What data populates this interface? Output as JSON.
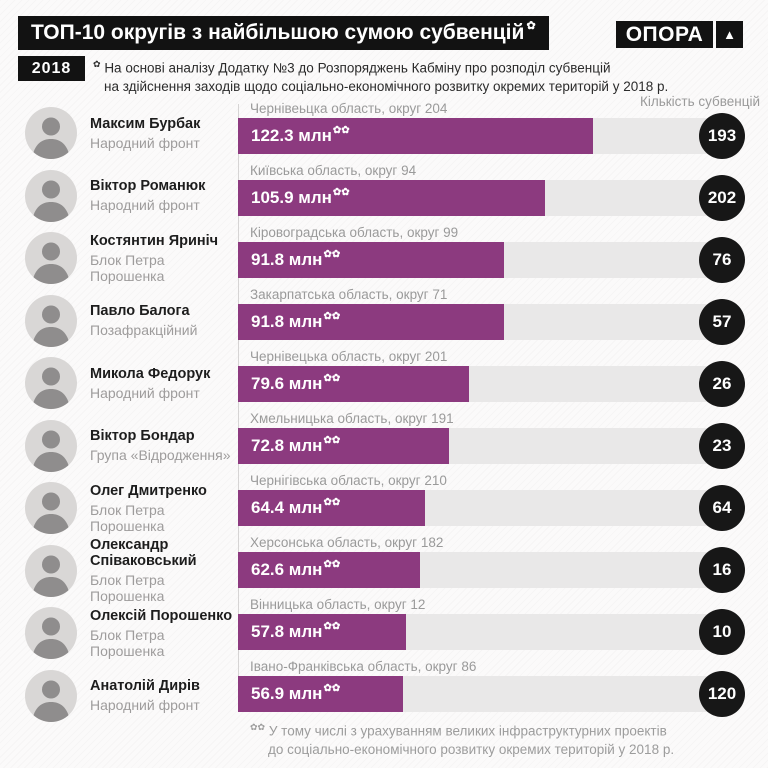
{
  "header": {
    "title": "ТОП-10 округів з найбільшою сумою субвенцій",
    "title_marker": "✿",
    "year": "2018",
    "source_note_marker": "✿",
    "source_note_line1": "На основі аналізу Додатку №3 до Розпоряджень Кабміну про розподіл субвенцій",
    "source_note_line2": "на здійснення заходів щодо соціально-економічного розвитку окремих територій у 2018 р.",
    "logo": {
      "text": "ОПОРА",
      "mark": "▲"
    }
  },
  "people": [
    {
      "name": "Максим Бурбак",
      "party": "Народний фронт"
    },
    {
      "name": "Віктор Романюк",
      "party": "Народний фронт"
    },
    {
      "name": "Костянтин Яриніч",
      "party": "Блок Петра Порошенка"
    },
    {
      "name": "Павло Балога",
      "party": "Позафракційний"
    },
    {
      "name": "Микола Федорук",
      "party": "Народний фронт"
    },
    {
      "name": "Віктор Бондар",
      "party": "Група «Відродження»"
    },
    {
      "name": "Олег Дмитренко",
      "party": "Блок Петра Порошенка"
    },
    {
      "name": "Олександр Співаковський",
      "party": "Блок Петра Порошенка"
    },
    {
      "name": "Олексій Порошенко",
      "party": "Блок Петра Порошенка"
    },
    {
      "name": "Анатолій Дирів",
      "party": "Народний фронт"
    }
  ],
  "chart_data": {
    "type": "bar",
    "title": "ТОП-10 округів з найбільшою сумою субвенцій, 2018",
    "count_label": "Кількість субвенцій",
    "value_unit": "млн",
    "value_marker": "✿✿",
    "max_value": 122.3,
    "max_bar_pct": 71.1,
    "bar_color": "#8c3a7f",
    "track_color": "#e9e8e8",
    "badge_color": "#171717",
    "categories": [
      "Чернівеьцка область, округ 204",
      "Київська область, округ 94",
      "Кіровоградська область, округ 99",
      "Закарпатська область, округ 71",
      "Чернівецька область, округ 201",
      "Хмельницька область, округ 191",
      "Чернігівська область, округ 210",
      "Херсонська область, округ 182",
      "Вінницька область, округ 12",
      "Івано-Франківська область, округ 86"
    ],
    "values": [
      122.3,
      105.9,
      91.8,
      91.8,
      79.6,
      72.8,
      64.4,
      62.6,
      57.8,
      56.9
    ],
    "counts": [
      193,
      202,
      76,
      57,
      26,
      23,
      64,
      16,
      10,
      120
    ],
    "rows": [
      {
        "region": "Чернівеьцка область, округ 204",
        "value": 122.3,
        "value_label": "122.3 млн",
        "count": "193"
      },
      {
        "region": "Київська область, округ 94",
        "value": 105.9,
        "value_label": "105.9 млн",
        "count": "202"
      },
      {
        "region": "Кіровоградська область, округ 99",
        "value": 91.8,
        "value_label": "91.8 млн",
        "count": "76"
      },
      {
        "region": "Закарпатська область, округ 71",
        "value": 91.8,
        "value_label": "91.8 млн",
        "count": "57"
      },
      {
        "region": "Чернівецька область, округ 201",
        "value": 79.6,
        "value_label": "79.6 млн",
        "count": "26"
      },
      {
        "region": "Хмельницька область, округ 191",
        "value": 72.8,
        "value_label": "72.8 млн",
        "count": "23"
      },
      {
        "region": "Чернігівська область, округ 210",
        "value": 64.4,
        "value_label": "64.4 млн",
        "count": "64"
      },
      {
        "region": "Херсонська область, округ 182",
        "value": 62.6,
        "value_label": "62.6 млн",
        "count": "16"
      },
      {
        "region": "Вінницька область, округ 12",
        "value": 57.8,
        "value_label": "57.8 млн",
        "count": "10"
      },
      {
        "region": "Івано-Франківська область, округ 86",
        "value": 56.9,
        "value_label": "56.9 млн",
        "count": "120"
      }
    ]
  },
  "footer": {
    "marker": "✿✿",
    "line1": "У тому числі з урахуванням великих інфраструктурних проектів",
    "line2": "до соціально-економічного розвитку окремих територій у 2018 р."
  }
}
